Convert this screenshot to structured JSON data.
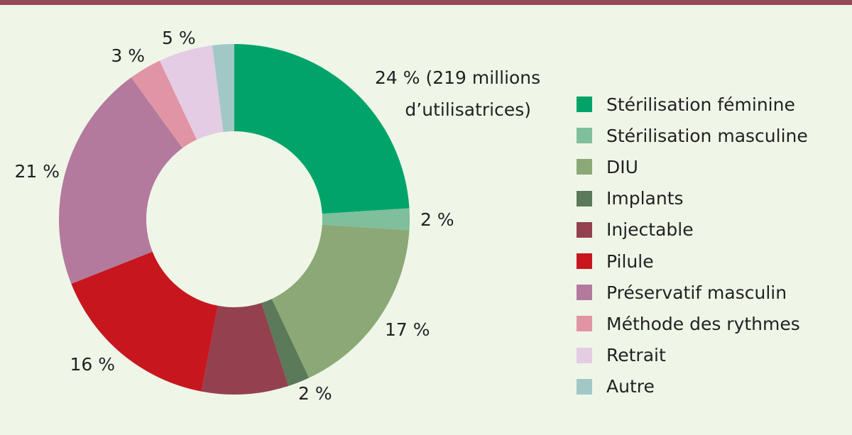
{
  "chart_data": {
    "type": "pie",
    "donut": true,
    "title": "",
    "slices": [
      {
        "name": "Stérilisation féminine",
        "value": 24,
        "label": "24 % (219 millions d’utilisatrices)",
        "color": "#00a46a"
      },
      {
        "name": "Stérilisation masculine",
        "value": 2,
        "label": "2 %",
        "color": "#7fbf9c"
      },
      {
        "name": "DIU",
        "value": 17,
        "label": "17 %",
        "color": "#8ba876"
      },
      {
        "name": "Implants",
        "value": 2,
        "label": "2 %",
        "color": "#5a7a5a"
      },
      {
        "name": "Injectable",
        "value": 8,
        "label": "",
        "color": "#93414f"
      },
      {
        "name": "Pilule",
        "value": 16,
        "label": "16 %",
        "color": "#c8161f"
      },
      {
        "name": "Préservatif masculin",
        "value": 21,
        "label": "21 %",
        "color": "#b37a9d"
      },
      {
        "name": "Méthode des rythmes",
        "value": 3,
        "label": "3 %",
        "color": "#e195a4"
      },
      {
        "name": "Retrait",
        "value": 5,
        "label": "5 %",
        "color": "#e4cce4"
      },
      {
        "name": "Autre",
        "value": 2,
        "label": "",
        "color": "#a2c8c6"
      }
    ],
    "legend_position": "right"
  }
}
